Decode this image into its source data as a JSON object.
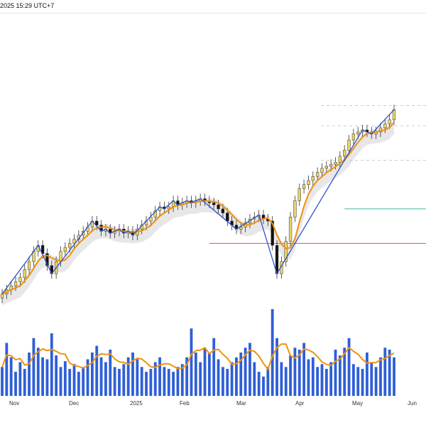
{
  "header": {
    "timestamp": "2025 15:29 UTC+7"
  },
  "chart_data": {
    "type": "candlestick",
    "title": "",
    "xlabel": "",
    "ylabel": "",
    "grid": false,
    "x_ticks": [
      "Nov",
      "Dec",
      "2025",
      "Feb",
      "Mar",
      "Apr",
      "May",
      "Jun"
    ],
    "colors": {
      "up_candle": "#e9d668",
      "down_candle": "#111111",
      "zigzag": "#2f52c9",
      "moving_average": "#f0920f",
      "channel_band": "#e1e1e1",
      "volume_bar": "#2f5fd6",
      "volume_average": "#f0920f",
      "green_level": "#3cb9a6",
      "red_level": "#d85555",
      "gray_dashed_level": "#cccccc"
    },
    "price_range": [
      0,
      100
    ],
    "price_close": [
      4,
      6,
      8,
      10,
      12,
      16,
      20,
      25,
      28,
      24,
      18,
      14,
      20,
      25,
      27,
      29,
      31,
      33,
      35,
      37,
      40,
      38,
      35,
      36,
      34,
      35,
      36,
      34,
      35,
      33,
      36,
      38,
      40,
      42,
      45,
      47,
      46,
      47,
      50,
      48,
      49,
      50,
      49,
      50,
      51,
      50,
      49,
      48,
      46,
      44,
      40,
      38,
      36,
      37,
      39,
      41,
      42,
      43,
      41,
      40,
      28,
      14,
      20,
      30,
      42,
      50,
      56,
      58,
      60,
      62,
      64,
      66,
      67,
      68,
      69,
      72,
      75,
      80,
      83,
      84,
      85,
      84,
      83,
      84,
      86,
      88,
      90,
      95
    ],
    "horizontal_levels": {
      "green": 46,
      "red": 29,
      "gray_dashed": [
        70,
        87,
        97
      ]
    },
    "volume": [
      30,
      55,
      40,
      25,
      35,
      28,
      45,
      60,
      50,
      40,
      38,
      65,
      42,
      30,
      36,
      28,
      33,
      25,
      30,
      38,
      45,
      52,
      40,
      35,
      48,
      30,
      28,
      33,
      40,
      45,
      38,
      30,
      25,
      28,
      35,
      40,
      30,
      28,
      25,
      30,
      33,
      40,
      70,
      45,
      35,
      50,
      45,
      60,
      38,
      30,
      28,
      35,
      40,
      45,
      50,
      55,
      35,
      25,
      20,
      30,
      90,
      60,
      35,
      30,
      42,
      50,
      48,
      55,
      38,
      40,
      30,
      33,
      28,
      35,
      48,
      42,
      50,
      60,
      33,
      30,
      28,
      45,
      35,
      30,
      40,
      50,
      48,
      40
    ]
  }
}
